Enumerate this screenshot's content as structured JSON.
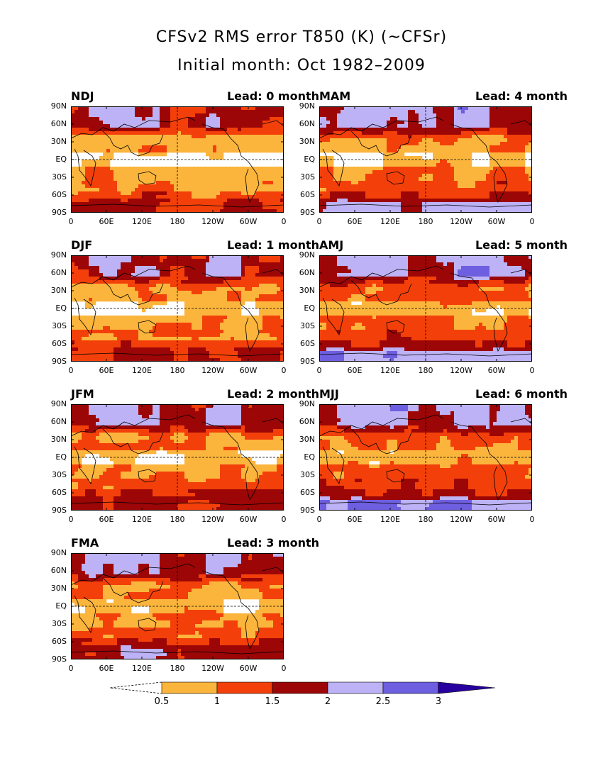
{
  "title": "CFSv2 RMS error T850 (K) (~CFSr)",
  "subtitle": "Initial month: Oct 1982–2009",
  "lat_labels": [
    "90N",
    "60N",
    "30N",
    "EQ",
    "30S",
    "60S",
    "90S"
  ],
  "lon_labels": [
    "0",
    "60E",
    "120E",
    "180",
    "120W",
    "60W",
    "0"
  ],
  "panels": [
    {
      "season": "NDJ",
      "lead": "Lead: 0 month",
      "intensity": 0
    },
    {
      "season": "MAM",
      "lead": "Lead: 4 month",
      "intensity": 4
    },
    {
      "season": "DJF",
      "lead": "Lead: 1 month",
      "intensity": 1
    },
    {
      "season": "AMJ",
      "lead": "Lead: 5 month",
      "intensity": 5
    },
    {
      "season": "JFM",
      "lead": "Lead: 2 month",
      "intensity": 2
    },
    {
      "season": "MJJ",
      "lead": "Lead: 6 month",
      "intensity": 6
    },
    {
      "season": "FMA",
      "lead": "Lead: 3 month",
      "intensity": 3
    }
  ],
  "colorbar": {
    "labels": [
      "0.5",
      "1",
      "1.5",
      "2",
      "2.5",
      "3"
    ],
    "colors": [
      "#ffffff",
      "#fbb53c",
      "#f3400a",
      "#9c0606",
      "#bdb2f5",
      "#6e5ee0",
      "#2800a0"
    ]
  }
}
